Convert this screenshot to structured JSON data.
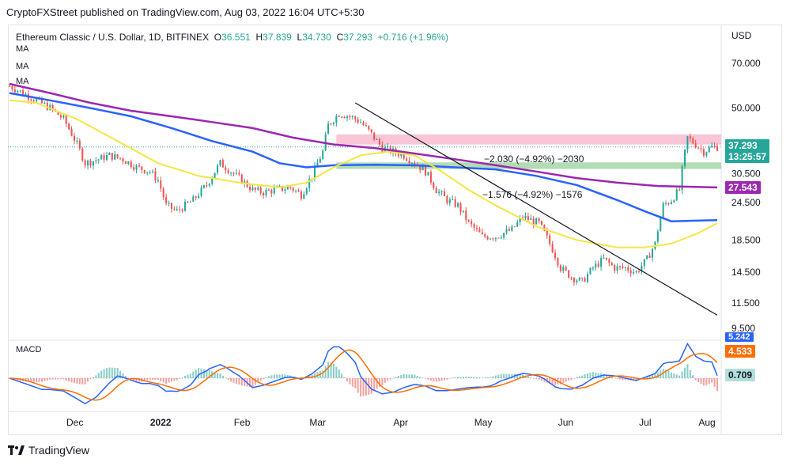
{
  "header": {
    "published_by": "CryptoFXStreet published on TradingView.com, Aug 03, 2022 16:04 UTC+5:30"
  },
  "legend": {
    "symbol": "Ethereum Classic / U.S. Dollar, 1D, BITFINEX",
    "open_label": "O",
    "open": "36.551",
    "high_label": "H",
    "high": "37.839",
    "low_label": "L",
    "low": "34.730",
    "close_label": "C",
    "close": "37.293",
    "change": "+0.716 (+1.96%)",
    "ma1": "MA",
    "ma2": "MA",
    "ma3": "MA"
  },
  "macd_label": "MACD",
  "currency": "USD",
  "price_tags": {
    "last": "37.293",
    "countdown": "13:25:57",
    "ma_purple": "27.543",
    "macd_blue": "5.242",
    "macd_orange": "4.533",
    "macd_hist": "0.709"
  },
  "annotations": {
    "upper": "−2.030 (−4.92%) −2030",
    "lower": "−1.576 (−4.92%) −1576"
  },
  "footer": {
    "brand": "TradingView"
  },
  "colors": {
    "up": "#26a69a",
    "down": "#ef5350",
    "ma_yellow": "#f5e642",
    "ma_blue": "#2962ff",
    "ma_purple": "#9c27b0",
    "macd_blue": "#2962ff",
    "macd_orange": "#ff6d00"
  },
  "chart_data": {
    "type": "candlestick",
    "title": "Ethereum Classic / U.S. Dollar, 1D, BITFINEX",
    "y_scale": "log",
    "y_ticks": [
      "70.000",
      "50.000",
      "30.500",
      "24.500",
      "18.500",
      "14.500",
      "11.500",
      "9.500"
    ],
    "x_ticks": [
      "Dec",
      "2022",
      "Feb",
      "Mar",
      "Apr",
      "May",
      "Jun",
      "Jul",
      "Aug"
    ],
    "price_path": [
      [
        0,
        59
      ],
      [
        5,
        56
      ],
      [
        10,
        53
      ],
      [
        15,
        50
      ],
      [
        20,
        46
      ],
      [
        25,
        38
      ],
      [
        28,
        33
      ],
      [
        33,
        34
      ],
      [
        37,
        35
      ],
      [
        42,
        34
      ],
      [
        47,
        32
      ],
      [
        52,
        31
      ],
      [
        55,
        29
      ],
      [
        58,
        24
      ],
      [
        62,
        23
      ],
      [
        68,
        25
      ],
      [
        73,
        28
      ],
      [
        78,
        33
      ],
      [
        82,
        31
      ],
      [
        86,
        29
      ],
      [
        90,
        27
      ],
      [
        94,
        26.5
      ],
      [
        98,
        27
      ],
      [
        104,
        27.5
      ],
      [
        108,
        26
      ],
      [
        112,
        30
      ],
      [
        116,
        36
      ],
      [
        118,
        44
      ],
      [
        122,
        48
      ],
      [
        126,
        47
      ],
      [
        130,
        45
      ],
      [
        134,
        41
      ],
      [
        138,
        37
      ],
      [
        142,
        36
      ],
      [
        146,
        35
      ],
      [
        150,
        33
      ],
      [
        154,
        31
      ],
      [
        158,
        27
      ],
      [
        162,
        25
      ],
      [
        166,
        24
      ],
      [
        170,
        21
      ],
      [
        175,
        19
      ],
      [
        180,
        19
      ],
      [
        186,
        20
      ],
      [
        190,
        22
      ],
      [
        196,
        21
      ],
      [
        200,
        18
      ],
      [
        204,
        15
      ],
      [
        208,
        14
      ],
      [
        212,
        13.5
      ],
      [
        216,
        15
      ],
      [
        220,
        16
      ],
      [
        224,
        15
      ],
      [
        228,
        15
      ],
      [
        232,
        14.5
      ],
      [
        236,
        16
      ],
      [
        239,
        18
      ],
      [
        242,
        24
      ],
      [
        245,
        25
      ],
      [
        248,
        27
      ],
      [
        251,
        40
      ],
      [
        254,
        38
      ],
      [
        257,
        36
      ],
      [
        260,
        37.3
      ]
    ],
    "ma_yellow_path": [
      [
        0,
        53
      ],
      [
        10,
        52
      ],
      [
        25,
        46
      ],
      [
        40,
        39
      ],
      [
        55,
        33
      ],
      [
        70,
        30
      ],
      [
        85,
        28.5
      ],
      [
        100,
        27.5
      ],
      [
        110,
        28.5
      ],
      [
        120,
        32
      ],
      [
        130,
        35
      ],
      [
        140,
        36
      ],
      [
        150,
        35
      ],
      [
        160,
        31
      ],
      [
        170,
        27
      ],
      [
        180,
        24
      ],
      [
        195,
        20.5
      ],
      [
        210,
        18.5
      ],
      [
        225,
        17.5
      ],
      [
        235,
        17.5
      ],
      [
        245,
        18
      ],
      [
        255,
        19.5
      ],
      [
        262,
        21
      ]
    ],
    "ma_blue_path": [
      [
        0,
        56
      ],
      [
        15,
        53
      ],
      [
        30,
        50
      ],
      [
        45,
        47
      ],
      [
        60,
        43
      ],
      [
        75,
        39
      ],
      [
        90,
        36
      ],
      [
        100,
        33
      ],
      [
        110,
        32
      ],
      [
        120,
        32.5
      ],
      [
        135,
        32.6
      ],
      [
        150,
        32.5
      ],
      [
        165,
        32
      ],
      [
        180,
        31.5
      ],
      [
        195,
        30
      ],
      [
        210,
        28
      ],
      [
        225,
        25
      ],
      [
        235,
        23
      ],
      [
        245,
        21.3
      ],
      [
        262,
        21.5
      ]
    ],
    "ma_purple_path": [
      [
        0,
        60
      ],
      [
        15,
        56
      ],
      [
        30,
        52
      ],
      [
        45,
        49
      ],
      [
        60,
        47
      ],
      [
        75,
        45
      ],
      [
        90,
        43
      ],
      [
        105,
        40
      ],
      [
        120,
        38
      ],
      [
        135,
        37
      ],
      [
        150,
        35.5
      ],
      [
        165,
        34
      ],
      [
        180,
        32.5
      ],
      [
        195,
        31
      ],
      [
        210,
        29.5
      ],
      [
        225,
        28.5
      ],
      [
        240,
        27.8
      ],
      [
        262,
        27.5
      ]
    ],
    "levels": {
      "resistance_zone": [
        38.0,
        41.0
      ],
      "support_zone": [
        31.6,
        33.2
      ]
    },
    "trendline": [
      [
        128,
        52
      ],
      [
        262,
        10.5
      ]
    ],
    "macd": {
      "last_values": {
        "macd": 5.242,
        "signal": 4.533,
        "histogram": 0.709
      }
    }
  }
}
